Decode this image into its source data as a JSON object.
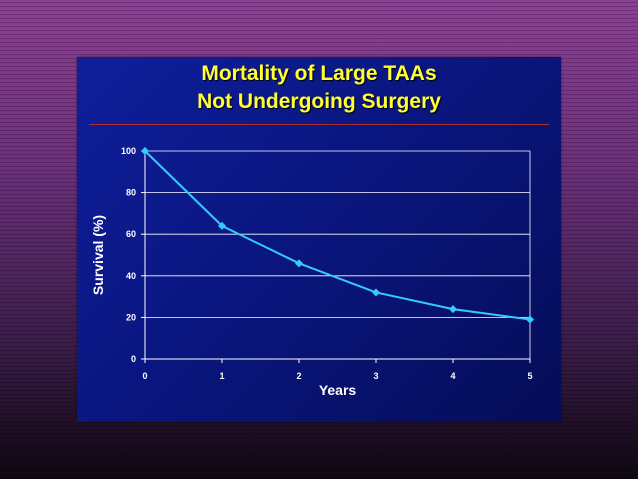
{
  "chart_data": {
    "type": "line",
    "title": "Mortality of Large TAAs",
    "subtitle": "Not Undergoing Surgery",
    "xlabel": "Years",
    "ylabel": "Survival (%)",
    "xlim": [
      0,
      5
    ],
    "ylim": [
      0,
      100
    ],
    "xticks": [
      "0",
      "1",
      "2",
      "3",
      "4",
      "5"
    ],
    "yticks": [
      "0",
      "20",
      "40",
      "60",
      "80",
      "100"
    ],
    "grid": true,
    "series": [
      {
        "color": "#33ccff",
        "points": [
          {
            "x": 0,
            "y": 100
          },
          {
            "x": 1,
            "y": 64
          },
          {
            "x": 2,
            "y": 46
          },
          {
            "x": 3,
            "y": 32
          },
          {
            "x": 4,
            "y": 24
          },
          {
            "x": 5,
            "y": 19
          }
        ]
      }
    ]
  },
  "colors": {
    "title": "#ffff33",
    "line": "#33ccff",
    "divider": "#b0302a"
  }
}
